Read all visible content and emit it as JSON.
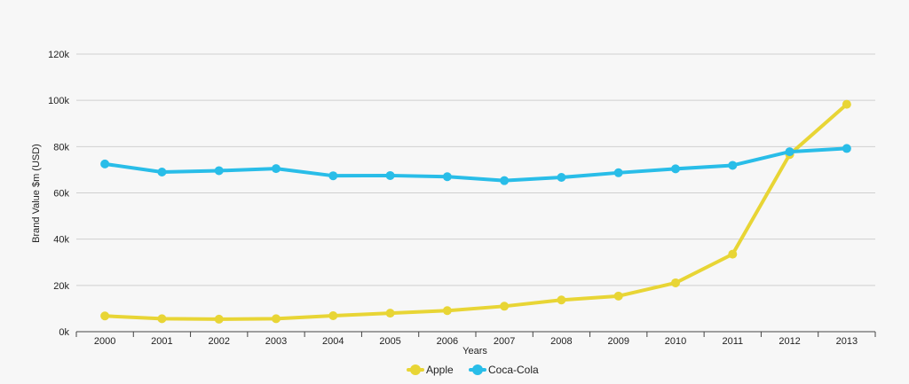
{
  "chart_data": {
    "type": "line",
    "title": "",
    "xlabel": "Years",
    "ylabel": "Brand Value $m (USD)",
    "categories": [
      "2000",
      "2001",
      "2002",
      "2003",
      "2004",
      "2005",
      "2006",
      "2007",
      "2008",
      "2009",
      "2010",
      "2011",
      "2012",
      "2013"
    ],
    "ylim": [
      0,
      120000
    ],
    "yticks": [
      0,
      20000,
      40000,
      60000,
      80000,
      100000,
      120000
    ],
    "ytick_labels": [
      "0k",
      "20k",
      "40k",
      "60k",
      "80k",
      "100k",
      "120k"
    ],
    "grid": true,
    "legend_position": "bottom-center",
    "series": [
      {
        "name": "Apple",
        "color": "#e8d535",
        "values": [
          6800,
          5600,
          5400,
          5600,
          6900,
          8000,
          9100,
          11000,
          13700,
          15400,
          21100,
          33500,
          76600,
          98300
        ]
      },
      {
        "name": "Coca-Cola",
        "color": "#29bde8",
        "values": [
          72500,
          69000,
          69600,
          70500,
          67400,
          67500,
          67000,
          65300,
          66700,
          68700,
          70400,
          71900,
          77800,
          79200
        ]
      }
    ]
  }
}
